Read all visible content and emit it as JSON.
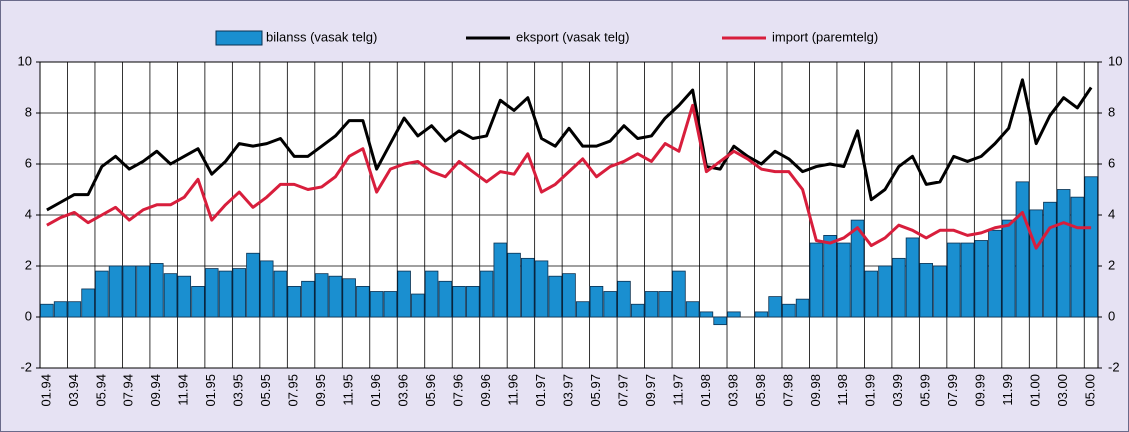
{
  "chart_data": {
    "type": "bar-line",
    "categories": [
      "01.94",
      null,
      "03.94",
      null,
      "05.94",
      null,
      "07.94",
      null,
      "09.94",
      null,
      "11.94",
      null,
      "01.95",
      null,
      "03.95",
      null,
      "05.95",
      null,
      "07.95",
      null,
      "09.95",
      null,
      "11.95",
      null,
      "01.96",
      null,
      "03.96",
      null,
      "05.96",
      null,
      "07.96",
      null,
      "09.96",
      null,
      "11.96",
      null,
      "01.97",
      null,
      "03.97",
      null,
      "05.97",
      null,
      "07.97",
      null,
      "09.97",
      null,
      "11.97",
      null,
      "01.98",
      null,
      "03.98",
      null,
      "05.98",
      null,
      "07.98",
      null,
      "09.98",
      null,
      "11.98",
      null,
      "01.99",
      null,
      "03.99",
      null,
      "05.99",
      null,
      "07.99",
      null,
      "09.99",
      null,
      "11.99",
      null,
      "01.00",
      null,
      "03.00",
      null,
      "05.00"
    ],
    "series": [
      {
        "name": "bilanss (vasak telg)",
        "kind": "bar",
        "color": "#1a8fd0",
        "values": [
          0.5,
          0.6,
          0.6,
          1.1,
          1.8,
          2.0,
          2.0,
          2.0,
          2.1,
          1.7,
          1.6,
          1.2,
          1.9,
          1.8,
          1.9,
          2.5,
          2.2,
          1.8,
          1.2,
          1.4,
          1.7,
          1.6,
          1.5,
          1.2,
          1.0,
          1.0,
          1.8,
          0.9,
          1.8,
          1.4,
          1.2,
          1.2,
          1.8,
          2.9,
          2.5,
          2.3,
          2.2,
          1.6,
          1.7,
          0.6,
          1.2,
          1.0,
          1.4,
          0.5,
          1.0,
          1.0,
          1.8,
          0.6,
          0.2,
          -0.3,
          0.2,
          0.0,
          0.2,
          0.8,
          0.5,
          0.7,
          2.9,
          3.2,
          2.9,
          3.8,
          1.8,
          2.0,
          2.3,
          3.1,
          2.1,
          2.0,
          2.9,
          2.9,
          3.0,
          3.4,
          3.8,
          5.3,
          4.2,
          4.5,
          5.0,
          4.7,
          5.5
        ]
      },
      {
        "name": "eksport (vasak telg)",
        "kind": "line",
        "color": "#000000",
        "values": [
          4.2,
          4.5,
          4.8,
          4.8,
          5.9,
          6.3,
          5.8,
          6.1,
          6.5,
          6.0,
          6.3,
          6.6,
          5.6,
          6.1,
          6.8,
          6.7,
          6.8,
          7.0,
          6.3,
          6.3,
          6.7,
          7.1,
          7.7,
          7.7,
          5.8,
          6.8,
          7.8,
          7.1,
          7.5,
          6.9,
          7.3,
          7.0,
          7.1,
          8.5,
          8.1,
          8.6,
          7.0,
          6.7,
          7.4,
          6.7,
          6.7,
          6.9,
          7.5,
          7.0,
          7.1,
          7.8,
          8.3,
          8.9,
          5.9,
          5.8,
          6.7,
          6.3,
          6.0,
          6.5,
          6.2,
          5.7,
          5.9,
          6.0,
          5.9,
          7.3,
          4.6,
          5.0,
          5.9,
          6.3,
          5.2,
          5.3,
          6.3,
          6.1,
          6.3,
          6.8,
          7.4,
          9.3,
          6.8,
          7.9,
          8.6,
          8.2,
          9.0
        ]
      },
      {
        "name": "import (paremtelg)",
        "kind": "line",
        "axis": "y2",
        "color": "#d81e3c",
        "values": [
          3.6,
          3.9,
          4.1,
          3.7,
          4.0,
          4.3,
          3.8,
          4.2,
          4.4,
          4.4,
          4.7,
          5.4,
          3.8,
          4.4,
          4.9,
          4.3,
          4.7,
          5.2,
          5.2,
          5.0,
          5.1,
          5.5,
          6.3,
          6.6,
          4.9,
          5.8,
          6.0,
          6.1,
          5.7,
          5.5,
          6.1,
          5.7,
          5.3,
          5.7,
          5.6,
          6.4,
          4.9,
          5.2,
          5.7,
          6.2,
          5.5,
          5.9,
          6.1,
          6.4,
          6.1,
          6.8,
          6.5,
          8.3,
          5.7,
          6.1,
          6.5,
          6.2,
          5.8,
          5.7,
          5.7,
          5.0,
          3.0,
          2.9,
          3.1,
          3.5,
          2.8,
          3.1,
          3.6,
          3.4,
          3.1,
          3.4,
          3.4,
          3.2,
          3.3,
          3.5,
          3.6,
          4.1,
          2.7,
          3.5,
          3.7,
          3.5,
          3.5
        ]
      }
    ],
    "ylim": [
      -2,
      10
    ],
    "yticks": [
      -2,
      0,
      2,
      4,
      6,
      8,
      10
    ],
    "y2lim": [
      -2,
      10
    ],
    "y2ticks": [
      -2,
      0,
      2,
      4,
      6,
      8,
      10
    ],
    "grid": true,
    "legend": "top"
  }
}
